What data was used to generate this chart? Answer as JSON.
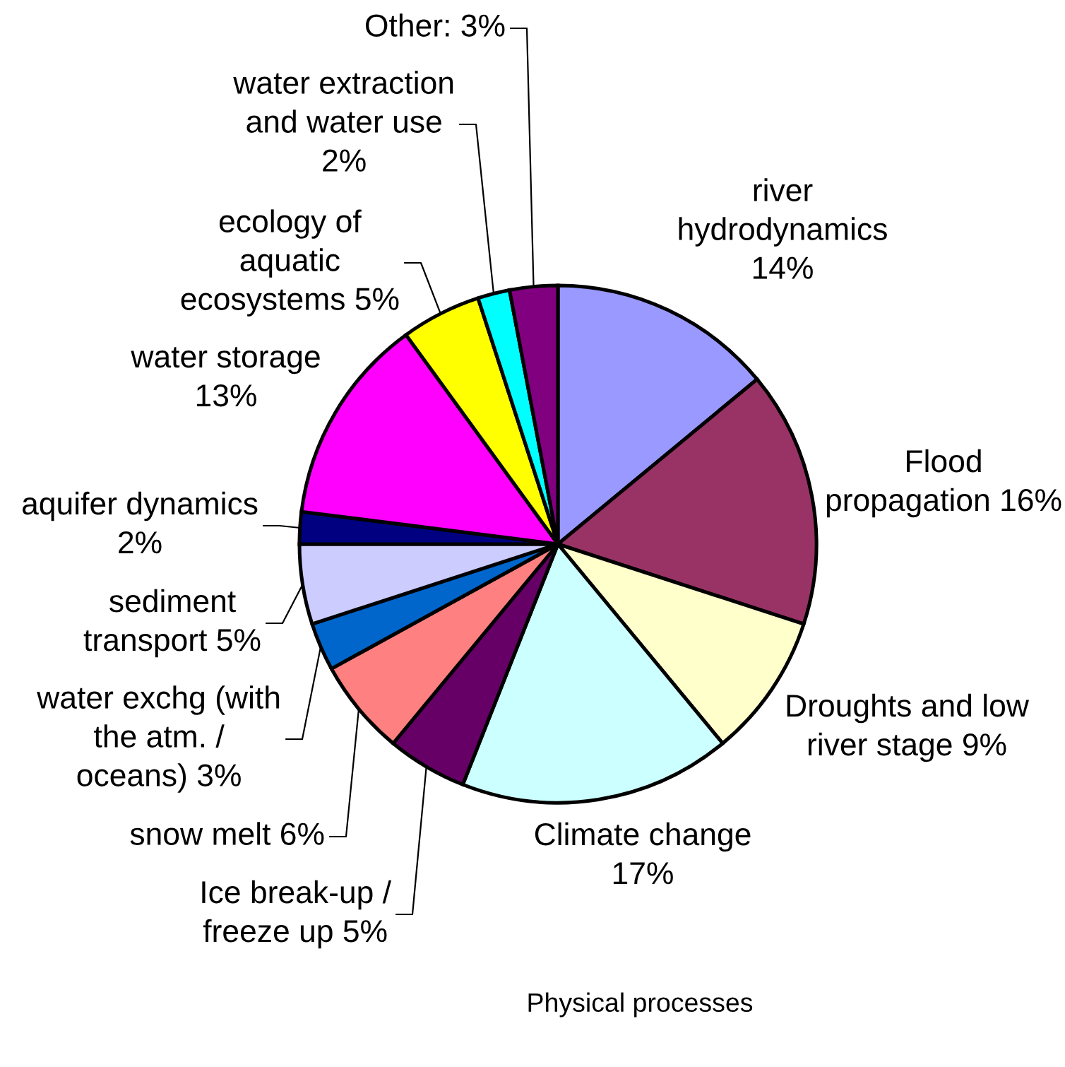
{
  "chart_data": {
    "type": "pie",
    "title": "Physical processes",
    "categories": [
      "river\nhydrodynamics",
      "Flood\npropagation",
      "Droughts and low\nriver stage",
      "Climate change",
      "Ice break-up /\nfreeze up",
      "snow melt",
      "water exchg (with\nthe atm. /\noceans)",
      "sediment\ntransport",
      "aquifer dynamics",
      "water storage",
      "ecology of\naquatic\necosystems",
      "water extraction\nand water use",
      "Other"
    ],
    "values": [
      14,
      16,
      9,
      17,
      5,
      6,
      3,
      5,
      2,
      13,
      5,
      2,
      3
    ],
    "value_labels": [
      "14%",
      "16%",
      "9%",
      "17%",
      "5%",
      "6%",
      "3%",
      "5%",
      "2%",
      "13%",
      "5%",
      "2%",
      "3%"
    ],
    "colors": [
      "#9999ff",
      "#993366",
      "#ffffcc",
      "#ccffff",
      "#660066",
      "#ff8080",
      "#0066cc",
      "#ccccff",
      "#000080",
      "#ff00ff",
      "#ffff00",
      "#00ffff",
      "#800080"
    ]
  }
}
